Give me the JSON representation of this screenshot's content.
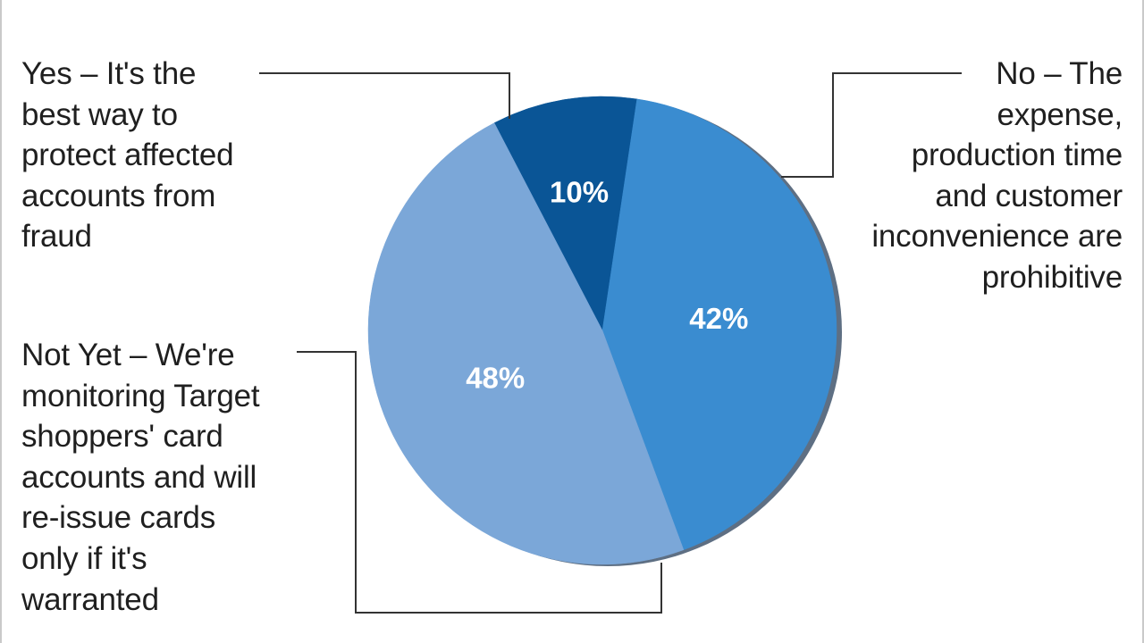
{
  "chart_data": {
    "type": "pie",
    "title": "",
    "slices": [
      {
        "label_lines": [
          "Yes – It's the",
          "best way to",
          "protect affected",
          "accounts from",
          "fraud"
        ],
        "value": 48,
        "value_label": "48%",
        "color": "#7ba7d8"
      },
      {
        "label_lines": [
          "No – The",
          "expense,",
          "production time",
          "and customer",
          "inconvenience are",
          "prohibitive"
        ],
        "value": 10,
        "value_label": "10%",
        "color": "#0a5596"
      },
      {
        "label_lines": [
          "Not Yet – We're",
          "monitoring Target",
          "shoppers' card",
          "accounts and will",
          "re-issue cards",
          "only if it's",
          "warranted"
        ],
        "value": 42,
        "value_label": "42%",
        "color": "#3a8cd0"
      }
    ],
    "legend": "callout labels"
  }
}
